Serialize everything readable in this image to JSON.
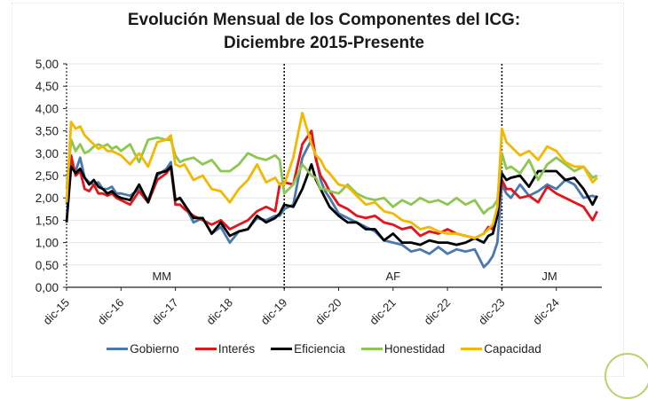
{
  "chart_data": {
    "type": "line",
    "title": "Evolución Mensual de los Componentes del ICG:",
    "subtitle": "Diciembre 2015-Presente",
    "xlabel": "",
    "ylabel": "",
    "ylim": [
      0,
      5
    ],
    "yticks": [
      "0,00",
      "0,50",
      "1,00",
      "1,50",
      "2,00",
      "2,50",
      "3,00",
      "3,50",
      "4,00",
      "4,50",
      "5,00"
    ],
    "xticks": [
      "dic-15",
      "dic-16",
      "dic-17",
      "dic-18",
      "dic-19",
      "dic-20",
      "dic-21",
      "dic-22",
      "dic-23",
      "dic-24"
    ],
    "x_unit": "months since dic-15",
    "grid": true,
    "legend_position": "bottom",
    "periods": [
      {
        "label": "MM",
        "start": 0,
        "end": 48
      },
      {
        "label": "AF",
        "start": 48,
        "end": 96
      },
      {
        "label": "JM",
        "start": 96,
        "end": 117
      }
    ],
    "period_dividers": [
      48,
      96
    ],
    "x": [
      0,
      1,
      2,
      3,
      4,
      5,
      6,
      7,
      8,
      9,
      10,
      11,
      12,
      14,
      16,
      18,
      20,
      22,
      23,
      24,
      25,
      26,
      28,
      30,
      32,
      34,
      36,
      38,
      40,
      42,
      44,
      46,
      47,
      48,
      50,
      52,
      54,
      55,
      56,
      57,
      58,
      60,
      62,
      64,
      66,
      68,
      70,
      72,
      74,
      76,
      78,
      80,
      82,
      84,
      86,
      88,
      90,
      92,
      93,
      94,
      95,
      96,
      97,
      98,
      100,
      102,
      104,
      106,
      108,
      110,
      112,
      114,
      116,
      117
    ],
    "series": [
      {
        "name": "Gobierno",
        "color": "#4a78b0",
        "values": [
          1.85,
          2.75,
          2.6,
          2.9,
          2.45,
          2.35,
          2.3,
          2.35,
          2.2,
          2.2,
          2.25,
          2.1,
          2.1,
          2.05,
          2.2,
          1.95,
          2.5,
          2.65,
          2.8,
          1.95,
          2.0,
          1.85,
          1.45,
          1.55,
          1.2,
          1.35,
          1.0,
          1.25,
          1.3,
          1.55,
          1.5,
          1.6,
          1.6,
          1.75,
          1.85,
          2.9,
          3.3,
          2.9,
          2.4,
          2.15,
          2.0,
          1.65,
          1.55,
          1.45,
          1.35,
          1.25,
          1.05,
          1.0,
          0.95,
          0.8,
          0.85,
          0.75,
          0.9,
          0.75,
          0.85,
          0.8,
          0.85,
          0.45,
          0.55,
          0.7,
          1.0,
          2.3,
          2.1,
          2.0,
          2.3,
          2.05,
          2.15,
          2.3,
          2.2,
          2.4,
          2.3,
          2.0,
          2.05,
          2.0
        ]
      },
      {
        "name": "Interés",
        "color": "#e3141b",
        "values": [
          1.9,
          2.95,
          2.5,
          2.6,
          2.2,
          2.15,
          2.3,
          2.1,
          2.1,
          2.05,
          2.1,
          2.0,
          1.95,
          1.85,
          2.15,
          1.9,
          2.4,
          2.55,
          2.7,
          1.85,
          1.85,
          1.75,
          1.6,
          1.5,
          1.4,
          1.5,
          1.3,
          1.4,
          1.5,
          1.7,
          1.8,
          1.7,
          2.3,
          2.35,
          2.3,
          3.2,
          3.5,
          2.85,
          2.5,
          2.35,
          2.15,
          1.85,
          1.75,
          1.6,
          1.55,
          1.6,
          1.45,
          1.4,
          1.3,
          1.35,
          1.15,
          1.25,
          1.2,
          1.3,
          1.2,
          1.15,
          1.1,
          1.2,
          1.35,
          1.3,
          1.6,
          2.4,
          2.2,
          2.2,
          2.0,
          2.05,
          1.9,
          2.25,
          2.1,
          2.0,
          1.9,
          1.8,
          1.5,
          1.7
        ]
      },
      {
        "name": "Eficiencia",
        "color": "#000000",
        "values": [
          1.45,
          2.7,
          2.55,
          2.65,
          2.45,
          2.3,
          2.4,
          2.25,
          2.2,
          2.1,
          2.15,
          2.05,
          2.0,
          1.95,
          2.3,
          1.9,
          2.55,
          2.6,
          2.7,
          1.95,
          2.0,
          1.85,
          1.55,
          1.55,
          1.2,
          1.45,
          1.15,
          1.25,
          1.3,
          1.6,
          1.45,
          1.55,
          1.65,
          1.85,
          1.8,
          2.2,
          2.75,
          2.4,
          2.2,
          2.0,
          1.8,
          1.6,
          1.45,
          1.45,
          1.3,
          1.3,
          1.05,
          1.2,
          1.0,
          1.0,
          0.95,
          1.05,
          1.0,
          1.0,
          0.95,
          1.0,
          1.1,
          1.0,
          1.15,
          1.2,
          1.6,
          2.55,
          2.4,
          2.45,
          2.5,
          2.25,
          2.6,
          2.6,
          2.6,
          2.4,
          2.45,
          2.2,
          1.85,
          2.05
        ]
      },
      {
        "name": "Honestidad",
        "color": "#8cc751",
        "values": [
          2.2,
          3.3,
          3.05,
          3.2,
          3.0,
          3.05,
          3.15,
          3.2,
          3.15,
          3.2,
          3.1,
          3.15,
          3.05,
          3.2,
          2.8,
          3.3,
          3.35,
          3.3,
          3.3,
          2.95,
          2.8,
          2.85,
          2.9,
          2.75,
          2.85,
          2.6,
          2.6,
          2.75,
          3.0,
          2.9,
          2.85,
          2.95,
          2.85,
          2.1,
          2.3,
          2.75,
          2.5,
          2.45,
          2.2,
          2.2,
          2.15,
          2.1,
          2.3,
          2.1,
          2.0,
          1.95,
          2.0,
          1.8,
          1.95,
          1.85,
          2.0,
          1.9,
          1.95,
          1.85,
          2.0,
          1.85,
          1.95,
          1.65,
          1.75,
          1.8,
          1.95,
          3.0,
          2.65,
          2.7,
          2.55,
          2.85,
          2.4,
          2.75,
          2.9,
          2.75,
          2.6,
          2.7,
          2.45,
          2.5
        ]
      },
      {
        "name": "Capacidad",
        "color": "#f5b800",
        "values": [
          1.9,
          3.7,
          3.55,
          3.6,
          3.4,
          3.3,
          3.2,
          3.1,
          3.15,
          3.05,
          3.05,
          3.0,
          2.95,
          2.75,
          3.0,
          2.7,
          3.25,
          3.3,
          3.4,
          2.75,
          2.7,
          2.75,
          2.4,
          2.5,
          2.2,
          2.15,
          1.9,
          2.2,
          2.4,
          2.75,
          2.35,
          2.45,
          2.3,
          2.3,
          2.9,
          3.9,
          3.2,
          2.95,
          2.85,
          2.65,
          2.55,
          2.3,
          2.25,
          2.05,
          1.85,
          1.9,
          1.7,
          1.65,
          1.5,
          1.45,
          1.3,
          1.35,
          1.25,
          1.2,
          1.2,
          1.15,
          1.1,
          1.2,
          1.3,
          1.4,
          1.8,
          3.55,
          3.25,
          3.15,
          2.95,
          3.05,
          2.85,
          3.15,
          3.05,
          2.8,
          2.7,
          2.7,
          2.35,
          2.45
        ]
      }
    ]
  }
}
